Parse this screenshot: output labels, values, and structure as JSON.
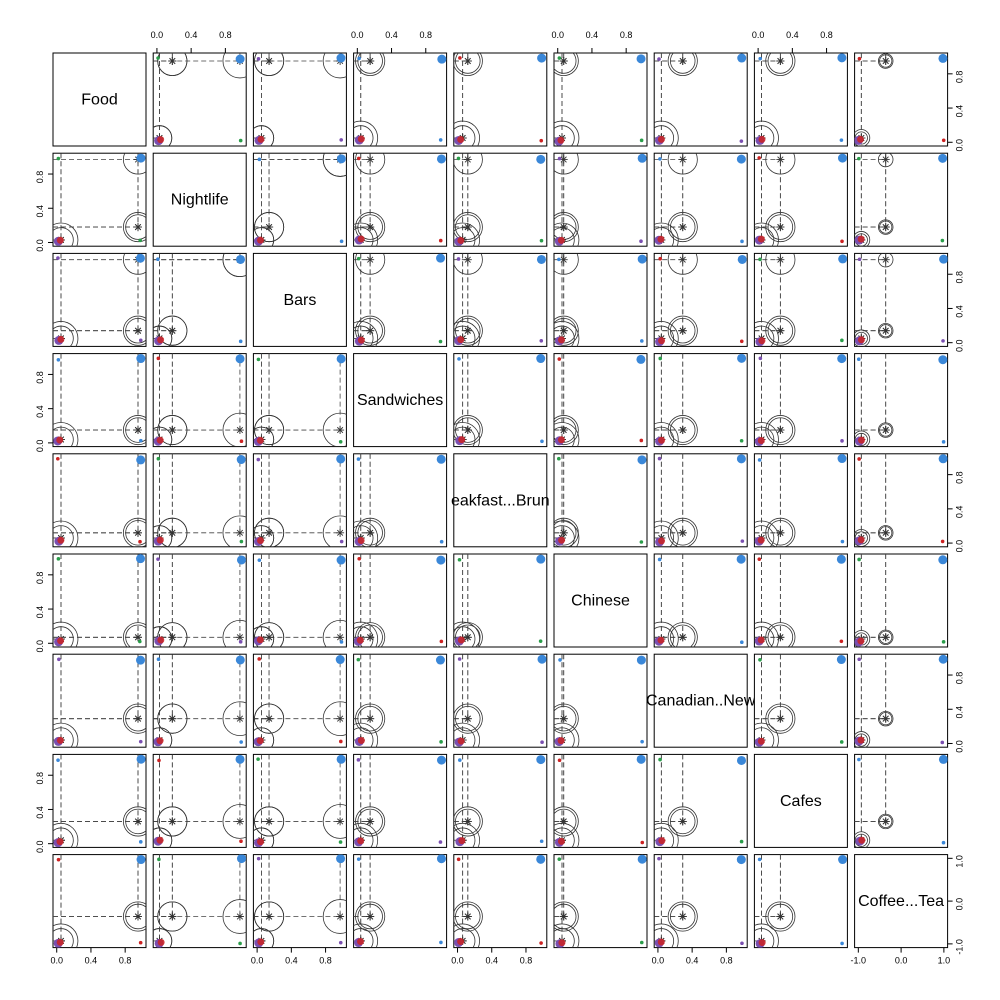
{
  "chart_data": {
    "type": "scatter",
    "title": "",
    "variables": [
      "Food",
      "Nightlife",
      "Bars",
      "Sandwiches",
      "Breakfast...Brunch",
      "Chinese",
      "Canadian..New",
      "Cafes",
      "Coffee...Tea"
    ],
    "diagonal_labels": [
      "Food",
      "Nightlife",
      "Bars",
      "Sandwiches",
      "eakfast...Brun",
      "Chinese",
      "Canadian..New",
      "Cafes",
      "Coffee...Tea"
    ],
    "axis_ranges": {
      "Food": [
        0,
        1
      ],
      "Nightlife": [
        0,
        1
      ],
      "Bars": [
        0,
        1
      ],
      "Sandwiches": [
        0,
        1
      ],
      "Breakfast...Brunch": [
        0,
        1
      ],
      "Chinese": [
        0,
        1
      ],
      "Canadian..New": [
        0,
        1
      ],
      "Cafes": [
        0,
        1
      ],
      "Coffee...Tea": [
        -1,
        1
      ]
    },
    "tick_labels": {
      "unit": [
        "0.0",
        "0.4",
        "0.8"
      ],
      "coffee": [
        "-1.0",
        "0.0",
        "1.0"
      ]
    },
    "grid": false,
    "legend": "none",
    "colors": {
      "blue": "#3a87d8",
      "red": "#cc2222",
      "green": "#2a9d4a",
      "purple": "#7a4fb0",
      "frame": "#000000",
      "guide": "#333333"
    },
    "bubble_radii": {
      "base": 0.18
    },
    "cluster_positions": {
      "Food": [
        0.02,
        0.98
      ],
      "Nightlife": [
        0.02,
        0.98
      ],
      "Bars": [
        0.02,
        0.98
      ],
      "Sandwiches": [
        0.02,
        0.98
      ],
      "Breakfast...Brunch": [
        0.02,
        0.98
      ],
      "Chinese": [
        0.02,
        0.98
      ],
      "Canadian..New": [
        0.02,
        0.98
      ],
      "Cafes": [
        0.02,
        0.98
      ],
      "Coffee...Tea": [
        -0.98,
        0.98
      ]
    },
    "centers": {
      "Food": [
        0.05,
        0.95
      ],
      "Nightlife": [
        0.03,
        0.18,
        0.97
      ],
      "Bars": [
        0.05,
        0.14,
        0.97
      ],
      "Sandwiches": [
        0.04,
        0.15
      ],
      "Breakfast...Brunch": [
        0.06,
        0.12
      ],
      "Chinese": [
        0.05,
        0.07
      ],
      "Canadian..New": [
        0.04,
        0.29
      ],
      "Cafes": [
        0.04,
        0.26
      ],
      "Coffee...Tea": [
        -0.93,
        -0.36
      ]
    }
  }
}
